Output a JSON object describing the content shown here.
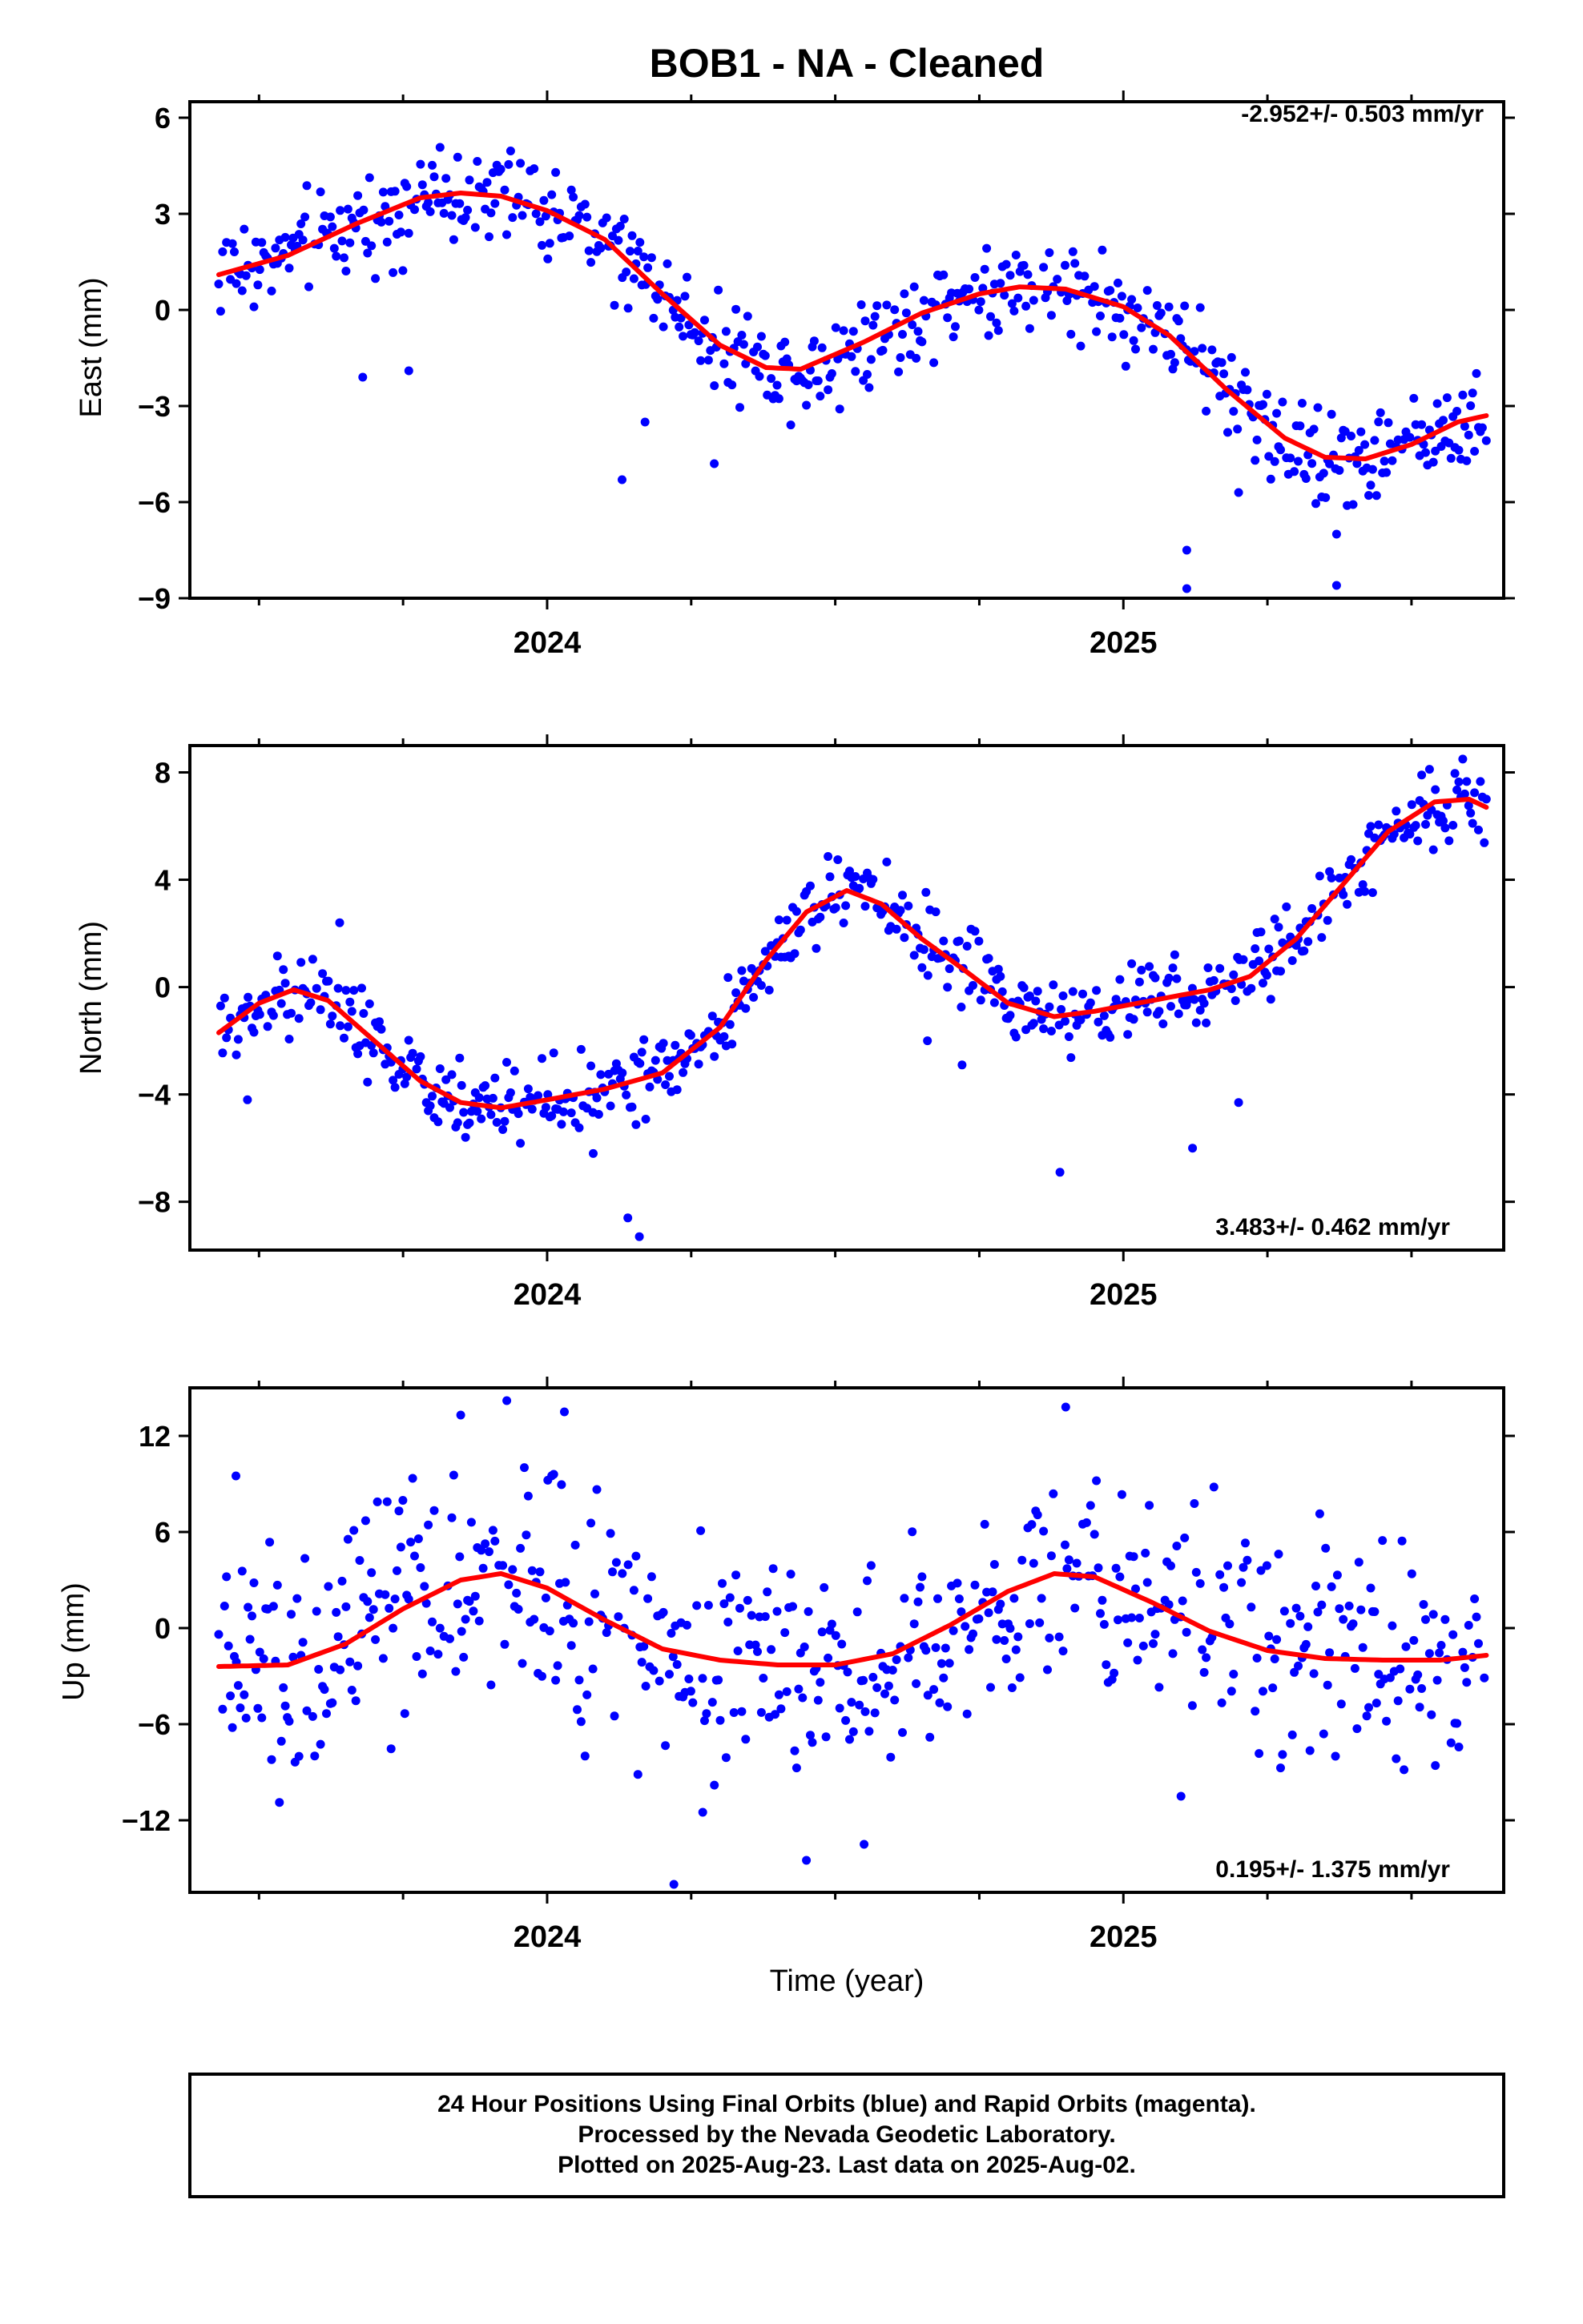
{
  "title": "BOB1  - NA - Cleaned",
  "colors": {
    "final_orbits": "#0000ff",
    "rapid_orbits": "#ff00ff",
    "model_fit": "#ff0000",
    "frame": "#000000"
  },
  "footer": {
    "line1": "24 Hour Positions Using Final Orbits (blue) and Rapid Orbits (magenta).",
    "line2": "Processed by the Nevada Geodetic Laboratory.",
    "line3": "Plotted on 2025-Aug-23. Last data on 2025-Aug-02."
  },
  "chart_data": [
    {
      "type": "scatter",
      "ylabel": "East (mm)",
      "xlabel": "",
      "xlim": [
        2023.38,
        2025.66
      ],
      "ylim": [
        -9,
        6.5
      ],
      "yticks": [
        "6",
        "3",
        "0",
        "−3",
        "−6",
        "−9"
      ],
      "ytick_values": [
        6,
        3,
        0,
        -3,
        -6,
        -9
      ],
      "xticks": [
        "2024",
        "2025"
      ],
      "xtick_values": [
        2024,
        2025
      ],
      "rate": "-2.952+/- 0.503 mm/yr",
      "rate_position": "top-right",
      "series": [
        {
          "name": "Final Orbits",
          "color": "#0000ff",
          "amp": 0.15,
          "fit": [
            [
              2023.43,
              1.1
            ],
            [
              2023.55,
              1.7
            ],
            [
              2023.67,
              2.7
            ],
            [
              2023.78,
              3.5
            ],
            [
              2023.85,
              3.65
            ],
            [
              2023.92,
              3.55
            ],
            [
              2024.0,
              3.1
            ],
            [
              2024.1,
              2.2
            ],
            [
              2024.2,
              0.5
            ],
            [
              2024.3,
              -1.1
            ],
            [
              2024.38,
              -1.8
            ],
            [
              2024.44,
              -1.85
            ],
            [
              2024.55,
              -1.0
            ],
            [
              2024.65,
              -0.1
            ],
            [
              2024.75,
              0.5
            ],
            [
              2024.82,
              0.72
            ],
            [
              2024.9,
              0.65
            ],
            [
              2025.0,
              0.1
            ],
            [
              2025.08,
              -0.8
            ],
            [
              2025.18,
              -2.5
            ],
            [
              2025.28,
              -4.0
            ],
            [
              2025.35,
              -4.6
            ],
            [
              2025.42,
              -4.65
            ],
            [
              2025.5,
              -4.2
            ],
            [
              2025.58,
              -3.5
            ],
            [
              2025.63,
              -3.3
            ]
          ],
          "outliers": [
            [
              2023.68,
              -2.1
            ],
            [
              2023.76,
              -1.9
            ],
            [
              2024.13,
              -5.3
            ],
            [
              2024.17,
              -3.5
            ],
            [
              2024.29,
              -4.8
            ],
            [
              2025.11,
              -7.5
            ],
            [
              2025.11,
              -8.7
            ],
            [
              2025.37,
              -7.0
            ],
            [
              2025.37,
              -8.6
            ],
            [
              2025.2,
              -5.7
            ]
          ]
        },
        {
          "name": "Model Fit",
          "color": "#ff0000",
          "line": true
        }
      ]
    },
    {
      "type": "scatter",
      "ylabel": "North (mm)",
      "xlabel": "",
      "xlim": [
        2023.38,
        2025.66
      ],
      "ylim": [
        -9.8,
        9
      ],
      "yticks": [
        "8",
        "4",
        "0",
        "−4",
        "−8"
      ],
      "ytick_values": [
        8,
        4,
        0,
        -4,
        -8
      ],
      "xticks": [
        "2024",
        "2025"
      ],
      "xtick_values": [
        2024,
        2025
      ],
      "rate": "3.483+/- 0.462 mm/yr",
      "rate_position": "bottom-right",
      "series": [
        {
          "name": "Final Orbits",
          "color": "#0000ff",
          "amp": 0.12,
          "fit": [
            [
              2023.43,
              -1.7
            ],
            [
              2023.5,
              -0.6
            ],
            [
              2023.56,
              -0.1
            ],
            [
              2023.62,
              -0.5
            ],
            [
              2023.7,
              -2.0
            ],
            [
              2023.78,
              -3.5
            ],
            [
              2023.85,
              -4.3
            ],
            [
              2023.92,
              -4.5
            ],
            [
              2024.0,
              -4.2
            ],
            [
              2024.1,
              -3.8
            ],
            [
              2024.2,
              -3.2
            ],
            [
              2024.3,
              -1.5
            ],
            [
              2024.38,
              1.0
            ],
            [
              2024.45,
              2.8
            ],
            [
              2024.52,
              3.6
            ],
            [
              2024.58,
              3.1
            ],
            [
              2024.65,
              1.8
            ],
            [
              2024.72,
              0.7
            ],
            [
              2024.8,
              -0.6
            ],
            [
              2024.88,
              -1.1
            ],
            [
              2024.95,
              -0.9
            ],
            [
              2025.05,
              -0.5
            ],
            [
              2025.15,
              -0.1
            ],
            [
              2025.22,
              0.4
            ],
            [
              2025.3,
              1.8
            ],
            [
              2025.38,
              3.8
            ],
            [
              2025.46,
              5.8
            ],
            [
              2025.54,
              6.9
            ],
            [
              2025.6,
              7.0
            ],
            [
              2025.63,
              6.7
            ]
          ],
          "outliers": [
            [
              2023.48,
              -4.2
            ],
            [
              2023.64,
              2.4
            ],
            [
              2024.14,
              -8.6
            ],
            [
              2024.16,
              -9.3
            ],
            [
              2024.66,
              -2.0
            ],
            [
              2024.72,
              -2.9
            ],
            [
              2024.89,
              -6.9
            ],
            [
              2025.12,
              -6.0
            ],
            [
              2025.2,
              -4.3
            ],
            [
              2024.08,
              -6.2
            ]
          ]
        },
        {
          "name": "Model Fit",
          "color": "#ff0000",
          "line": true
        }
      ]
    },
    {
      "type": "scatter",
      "ylabel": "Up (mm)",
      "xlabel": "Time (year)",
      "xlim": [
        2023.38,
        2025.66
      ],
      "ylim": [
        -16.5,
        15
      ],
      "yticks": [
        "12",
        "6",
        "0",
        "−6",
        "−12"
      ],
      "ytick_values": [
        12,
        6,
        0,
        -6,
        -12
      ],
      "xticks": [
        "2024",
        "2025"
      ],
      "xtick_values": [
        2024,
        2025
      ],
      "rate": "0.195+/- 1.375 mm/yr",
      "rate_position": "bottom-right",
      "series": [
        {
          "name": "Final Orbits",
          "color": "#0000ff",
          "amp": 0.35,
          "fit": [
            [
              2023.43,
              -2.4
            ],
            [
              2023.55,
              -2.3
            ],
            [
              2023.65,
              -1.0
            ],
            [
              2023.75,
              1.2
            ],
            [
              2023.85,
              3.0
            ],
            [
              2023.92,
              3.4
            ],
            [
              2024.0,
              2.5
            ],
            [
              2024.1,
              0.5
            ],
            [
              2024.2,
              -1.3
            ],
            [
              2024.3,
              -2.0
            ],
            [
              2024.4,
              -2.3
            ],
            [
              2024.5,
              -2.3
            ],
            [
              2024.6,
              -1.6
            ],
            [
              2024.7,
              0.2
            ],
            [
              2024.8,
              2.3
            ],
            [
              2024.88,
              3.4
            ],
            [
              2024.95,
              3.2
            ],
            [
              2025.05,
              1.6
            ],
            [
              2025.15,
              -0.2
            ],
            [
              2025.25,
              -1.4
            ],
            [
              2025.35,
              -1.9
            ],
            [
              2025.45,
              -2.0
            ],
            [
              2025.55,
              -2.0
            ],
            [
              2025.63,
              -1.7
            ]
          ],
          "outliers": [
            [
              2023.85,
              13.3
            ],
            [
              2023.93,
              14.2
            ],
            [
              2024.03,
              13.5
            ],
            [
              2024.9,
              13.8
            ],
            [
              2024.22,
              -16.0
            ],
            [
              2024.45,
              -14.5
            ],
            [
              2024.55,
              -13.5
            ],
            [
              2023.46,
              9.5
            ],
            [
              2025.1,
              -10.5
            ],
            [
              2024.27,
              -11.5
            ]
          ]
        },
        {
          "name": "Model Fit",
          "color": "#ff0000",
          "line": true
        }
      ]
    }
  ]
}
